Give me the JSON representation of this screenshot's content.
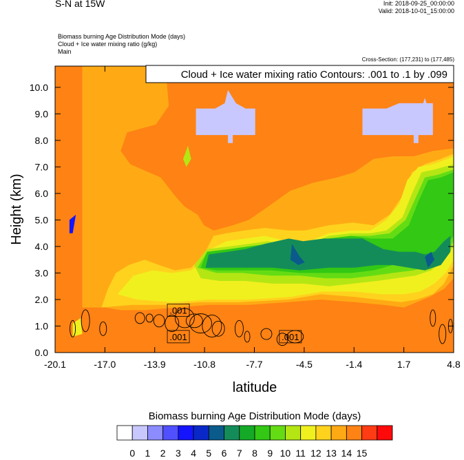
{
  "header": {
    "title": "S-N at 15W",
    "init": "Init: 2018-09-25_00:00:00",
    "valid": "Valid: 2018-10-01_15:00:00",
    "fields": [
      "Biomass burning Age Distribution Mode   (days)",
      "Cloud + Ice water mixing ratio   (g/kg)",
      "Main"
    ],
    "cross_section": "Cross-Section: (177,231) to (177,485)"
  },
  "chart_data": {
    "type": "heatmap",
    "title": "S-N at 15W",
    "xlabel": "latitude",
    "ylabel": "Height (km)",
    "x_ticks": [
      "-20.1",
      "-17.0",
      "-13.9",
      "-10.8",
      "-7.7",
      "-4.5",
      "-1.4",
      "1.7",
      "4.8"
    ],
    "y_ticks": [
      "0.0",
      "1.0",
      "2.0",
      "3.0",
      "4.0",
      "5.0",
      "6.0",
      "7.0",
      "8.0",
      "9.0",
      "10.0"
    ],
    "xlim": [
      -20.1,
      4.8
    ],
    "ylim": [
      0,
      10.8
    ],
    "contour_legend": "Cloud + Ice water mixing ratio Contours: .001 to .1 by .099",
    "contour_labels": [
      {
        "text": ".001",
        "lat": -12.4,
        "height": 1.6
      },
      {
        "text": ".001",
        "lat": -12.4,
        "height": 0.6
      },
      {
        "text": ".001",
        "lat": -5.4,
        "height": 0.6
      }
    ],
    "colorbar": {
      "title": "Biomass burning Age Distribution Mode  (days)",
      "labels": [
        "0",
        "1",
        "2",
        "3",
        "4",
        "5",
        "6",
        "7",
        "8",
        "9",
        "10",
        "11",
        "12",
        "13",
        "14",
        "15"
      ],
      "colors": [
        "#ffffff",
        "#c8c8ff",
        "#8c8cff",
        "#5050ff",
        "#1414ff",
        "#0a28c8",
        "#0a5a8c",
        "#148c5a",
        "#14aa28",
        "#32c814",
        "#64dc14",
        "#b4e614",
        "#f0f01e",
        "#ffd21e",
        "#ffaa14",
        "#ff8214",
        "#ff3c14",
        "#ff0a0a"
      ]
    },
    "regions": [
      {
        "age": 14,
        "polygon": [
          [
            -20.1,
            0
          ],
          [
            4.8,
            0
          ],
          [
            4.8,
            10.8
          ],
          [
            -20.1,
            10.8
          ]
        ]
      },
      {
        "age": 13,
        "polygon": [
          [
            -20.1,
            10.8
          ],
          [
            -13.2,
            10.8
          ],
          [
            -13.0,
            9.3
          ],
          [
            -13.8,
            8.6
          ],
          [
            -15.6,
            8.3
          ],
          [
            -16.0,
            7.6
          ],
          [
            -15.4,
            7.1
          ],
          [
            -13.5,
            6.6
          ],
          [
            -12.6,
            5.9
          ],
          [
            -12.0,
            5.5
          ],
          [
            -11.2,
            5.2
          ],
          [
            -10.8,
            4.8
          ],
          [
            -10.2,
            4.6
          ],
          [
            -9.0,
            4.8
          ],
          [
            -8.0,
            5.0
          ],
          [
            -6.8,
            5.5
          ],
          [
            -5.4,
            6.1
          ],
          [
            -4.0,
            6.4
          ],
          [
            -2.5,
            6.6
          ],
          [
            -1.4,
            6.8
          ],
          [
            -0.2,
            7.3
          ],
          [
            1.0,
            7.4
          ],
          [
            2.3,
            7.4
          ],
          [
            3.5,
            7.6
          ],
          [
            4.8,
            7.7
          ],
          [
            4.8,
            2.8
          ],
          [
            4.2,
            2.4
          ],
          [
            3.3,
            2.1
          ],
          [
            2.5,
            1.9
          ],
          [
            1.7,
            1.7
          ],
          [
            0.4,
            1.8
          ],
          [
            -1.4,
            1.9
          ],
          [
            -3.5,
            2.0
          ],
          [
            -5.5,
            1.9
          ],
          [
            -8.0,
            1.8
          ],
          [
            -10.5,
            1.8
          ],
          [
            -12.5,
            1.7
          ],
          [
            -14.5,
            1.6
          ],
          [
            -16.0,
            1.6
          ],
          [
            -17.0,
            1.7
          ],
          [
            -18.4,
            1.7
          ],
          [
            -18.4,
            10.8
          ]
        ]
      },
      {
        "age": 12,
        "polygon": [
          [
            -17.2,
            1.7
          ],
          [
            -16.8,
            2.4
          ],
          [
            -16.3,
            3.0
          ],
          [
            -15.5,
            3.3
          ],
          [
            -14.5,
            3.5
          ],
          [
            -13.6,
            3.3
          ],
          [
            -12.6,
            3.1
          ],
          [
            -11.6,
            3.2
          ],
          [
            -10.8,
            3.7
          ],
          [
            -10.2,
            4.4
          ],
          [
            -9.4,
            4.5
          ],
          [
            -8.3,
            4.6
          ],
          [
            -7.0,
            4.7
          ],
          [
            -5.5,
            4.6
          ],
          [
            -4.5,
            4.6
          ],
          [
            -3.0,
            4.8
          ],
          [
            -1.5,
            4.9
          ],
          [
            -0.2,
            4.8
          ],
          [
            0.8,
            5.2
          ],
          [
            1.6,
            5.9
          ],
          [
            2.2,
            6.8
          ],
          [
            3.0,
            7.1
          ],
          [
            4.0,
            7.3
          ],
          [
            4.8,
            7.5
          ],
          [
            4.8,
            3.3
          ],
          [
            4.2,
            2.6
          ],
          [
            3.5,
            2.2
          ],
          [
            2.5,
            2.0
          ],
          [
            1.5,
            1.9
          ],
          [
            0.0,
            2.0
          ],
          [
            -1.4,
            2.1
          ],
          [
            -3.5,
            2.2
          ],
          [
            -5.5,
            2.0
          ],
          [
            -8.5,
            1.9
          ],
          [
            -11.0,
            1.9
          ],
          [
            -13.2,
            1.8
          ],
          [
            -15.3,
            1.8
          ]
        ]
      },
      {
        "age": 11,
        "polygon": [
          [
            -16.2,
            2.2
          ],
          [
            -15.2,
            2.9
          ],
          [
            -14.0,
            3.1
          ],
          [
            -12.8,
            3.0
          ],
          [
            -11.6,
            3.1
          ],
          [
            -11.0,
            3.4
          ],
          [
            -10.4,
            3.9
          ],
          [
            -9.4,
            4.2
          ],
          [
            -8.2,
            4.3
          ],
          [
            -7.0,
            4.4
          ],
          [
            -5.6,
            4.2
          ],
          [
            -4.2,
            4.2
          ],
          [
            -3.0,
            4.5
          ],
          [
            -1.6,
            4.6
          ],
          [
            -0.4,
            4.6
          ],
          [
            0.6,
            5.0
          ],
          [
            1.4,
            5.6
          ],
          [
            1.9,
            6.5
          ],
          [
            2.6,
            7.0
          ],
          [
            3.5,
            7.1
          ],
          [
            4.4,
            7.3
          ],
          [
            4.8,
            7.4
          ],
          [
            4.8,
            3.5
          ],
          [
            4.3,
            3.0
          ],
          [
            3.6,
            2.6
          ],
          [
            2.7,
            2.3
          ],
          [
            1.7,
            2.2
          ],
          [
            0.3,
            2.2
          ],
          [
            -1.4,
            2.3
          ],
          [
            -3.4,
            2.3
          ],
          [
            -5.4,
            2.1
          ],
          [
            -8.0,
            2.0
          ],
          [
            -10.5,
            2.0
          ],
          [
            -12.8,
            1.9
          ],
          [
            -15.0,
            2.0
          ]
        ]
      },
      {
        "age": 10,
        "polygon": [
          [
            -11.4,
            3.3
          ],
          [
            -10.6,
            3.9
          ],
          [
            -9.2,
            4.0
          ],
          [
            -8.0,
            4.1
          ],
          [
            -6.8,
            4.2
          ],
          [
            -5.4,
            4.0
          ],
          [
            -4.2,
            4.1
          ],
          [
            -3.0,
            4.4
          ],
          [
            -1.6,
            4.5
          ],
          [
            -0.4,
            4.5
          ],
          [
            0.6,
            4.6
          ],
          [
            1.6,
            5.1
          ],
          [
            2.2,
            6.0
          ],
          [
            2.8,
            6.8
          ],
          [
            3.6,
            6.9
          ],
          [
            4.8,
            7.1
          ],
          [
            4.8,
            4.0
          ],
          [
            4.2,
            3.5
          ],
          [
            3.4,
            3.1
          ],
          [
            2.4,
            2.9
          ],
          [
            1.2,
            2.8
          ],
          [
            0.0,
            2.7
          ],
          [
            -1.5,
            2.6
          ],
          [
            -3.0,
            2.5
          ],
          [
            -4.6,
            2.6
          ],
          [
            -6.5,
            2.6
          ],
          [
            -8.2,
            2.7
          ],
          [
            -9.8,
            2.7
          ],
          [
            -11.0,
            2.8
          ]
        ]
      },
      {
        "age": 9,
        "polygon": [
          [
            -11.2,
            3.2
          ],
          [
            -10.6,
            3.8
          ],
          [
            -9.2,
            3.9
          ],
          [
            -8.0,
            4.0
          ],
          [
            -6.8,
            4.1
          ],
          [
            -5.4,
            3.9
          ],
          [
            -4.2,
            4.0
          ],
          [
            -3.0,
            4.3
          ],
          [
            -1.6,
            4.4
          ],
          [
            -0.4,
            4.4
          ],
          [
            0.8,
            4.5
          ],
          [
            1.8,
            5.0
          ],
          [
            2.4,
            5.8
          ],
          [
            3.0,
            6.6
          ],
          [
            3.8,
            6.7
          ],
          [
            4.8,
            6.9
          ],
          [
            4.8,
            4.2
          ],
          [
            4.3,
            3.7
          ],
          [
            3.4,
            3.3
          ],
          [
            2.3,
            3.1
          ],
          [
            1.0,
            3.0
          ],
          [
            -0.2,
            2.9
          ],
          [
            -1.6,
            2.8
          ],
          [
            -3.2,
            2.8
          ],
          [
            -4.8,
            2.9
          ],
          [
            -6.6,
            2.9
          ],
          [
            -8.4,
            3.0
          ],
          [
            -10.0,
            3.0
          ]
        ]
      },
      {
        "age": 8,
        "polygon": [
          [
            -11.0,
            3.2
          ],
          [
            -10.6,
            3.8
          ],
          [
            -9.2,
            3.9
          ],
          [
            -8.0,
            4.0
          ],
          [
            -6.8,
            4.1
          ],
          [
            -5.4,
            3.9
          ],
          [
            -4.2,
            4.0
          ],
          [
            -3.0,
            4.3
          ],
          [
            -1.6,
            4.4
          ],
          [
            -0.4,
            4.3
          ],
          [
            1.0,
            4.3
          ],
          [
            2.0,
            4.8
          ],
          [
            2.6,
            5.7
          ],
          [
            3.2,
            6.5
          ],
          [
            4.0,
            6.6
          ],
          [
            4.8,
            6.8
          ],
          [
            4.8,
            4.4
          ],
          [
            4.3,
            4.0
          ],
          [
            3.5,
            3.6
          ],
          [
            2.4,
            3.4
          ],
          [
            1.0,
            3.3
          ],
          [
            -0.2,
            3.1
          ],
          [
            -1.6,
            3.0
          ],
          [
            -3.2,
            3.0
          ],
          [
            -4.8,
            3.0
          ],
          [
            -6.6,
            3.1
          ],
          [
            -8.4,
            3.1
          ],
          [
            -10.0,
            3.1
          ]
        ]
      },
      {
        "age": 6,
        "polygon": [
          [
            -10.7,
            3.2
          ],
          [
            -10.5,
            3.7
          ],
          [
            -9.3,
            3.8
          ],
          [
            -8.2,
            3.9
          ],
          [
            -7.0,
            4.1
          ],
          [
            -5.5,
            4.3
          ],
          [
            -4.6,
            4.2
          ],
          [
            -3.3,
            4.3
          ],
          [
            -2.2,
            4.3
          ],
          [
            -0.9,
            4.3
          ],
          [
            0.4,
            3.9
          ],
          [
            1.4,
            3.8
          ],
          [
            2.4,
            3.8
          ],
          [
            3.0,
            3.7
          ],
          [
            3.6,
            3.8
          ],
          [
            4.2,
            4.2
          ],
          [
            4.6,
            4.4
          ],
          [
            4.6,
            3.8
          ],
          [
            4.0,
            3.3
          ],
          [
            3.0,
            3.1
          ],
          [
            2.0,
            3.2
          ],
          [
            1.0,
            3.3
          ],
          [
            0.0,
            3.3
          ],
          [
            -1.4,
            3.2
          ],
          [
            -3.0,
            3.2
          ],
          [
            -4.8,
            3.1
          ],
          [
            -6.5,
            3.2
          ],
          [
            -8.5,
            3.2
          ]
        ]
      },
      {
        "age": 5,
        "polygon": [
          [
            -5.3,
            4.1
          ],
          [
            -4.8,
            3.6
          ],
          [
            -4.5,
            3.4
          ],
          [
            -4.9,
            3.3
          ],
          [
            -5.4,
            3.5
          ]
        ]
      },
      {
        "age": 5,
        "polygon": [
          [
            3.0,
            3.6
          ],
          [
            3.4,
            3.8
          ],
          [
            3.6,
            3.5
          ],
          [
            3.2,
            3.2
          ]
        ]
      },
      {
        "age": 10,
        "polygon": [
          [
            -11.8,
            7.8
          ],
          [
            -11.6,
            7.3
          ],
          [
            -11.9,
            7.0
          ],
          [
            -12.1,
            7.3
          ]
        ]
      },
      {
        "age": 11,
        "polygon": [
          [
            -19.0,
            0.6
          ],
          [
            -18.4,
            0.7
          ],
          [
            -18.5,
            1.3
          ],
          [
            -19.0,
            1.1
          ]
        ]
      },
      {
        "age": 0,
        "polygon": [
          [
            -11.3,
            9.2
          ],
          [
            -10.1,
            9.2
          ],
          [
            -9.5,
            9.4
          ],
          [
            -9.3,
            9.9
          ],
          [
            -8.8,
            9.4
          ],
          [
            -8.2,
            9.2
          ],
          [
            -7.6,
            9.2
          ],
          [
            -7.6,
            8.2
          ],
          [
            -9.0,
            8.2
          ],
          [
            -9.0,
            7.9
          ],
          [
            -9.3,
            7.9
          ],
          [
            -9.3,
            8.2
          ],
          [
            -10.2,
            8.2
          ],
          [
            -11.3,
            8.2
          ]
        ]
      },
      {
        "age": 0,
        "polygon": [
          [
            -0.9,
            9.2
          ],
          [
            0.6,
            9.2
          ],
          [
            1.4,
            9.4
          ],
          [
            2.2,
            9.4
          ],
          [
            2.9,
            9.4
          ],
          [
            3.0,
            9.6
          ],
          [
            3.1,
            9.4
          ],
          [
            3.5,
            9.4
          ],
          [
            3.5,
            8.2
          ],
          [
            2.6,
            8.2
          ],
          [
            2.6,
            7.9
          ],
          [
            2.3,
            7.9
          ],
          [
            2.3,
            8.2
          ],
          [
            -0.9,
            8.2
          ]
        ]
      },
      {
        "age": 3,
        "polygon": [
          [
            -19.2,
            4.5
          ],
          [
            -19.0,
            4.5
          ],
          [
            -18.8,
            5.2
          ],
          [
            -19.2,
            5.0
          ]
        ]
      }
    ]
  }
}
